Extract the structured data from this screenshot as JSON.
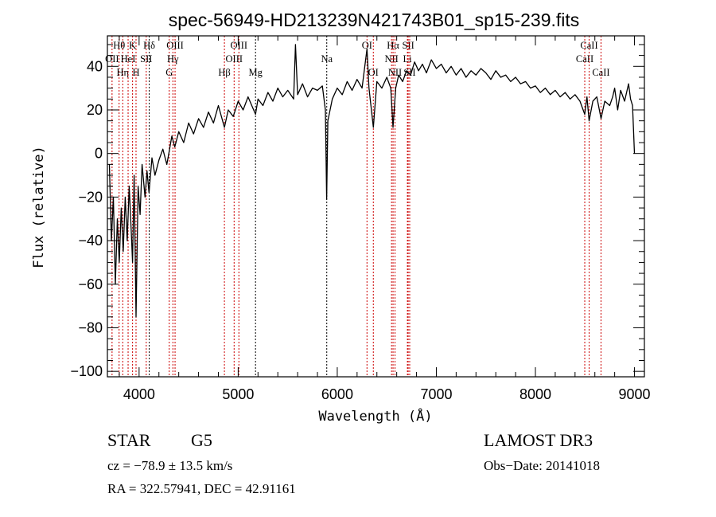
{
  "chart_data": {
    "type": "line",
    "title": "spec-56949-HD213239N421743B01_sp15-239.fits",
    "xlabel": "Wavelength (Å)",
    "ylabel": "Flux (relative)",
    "xlim": [
      3680,
      9100
    ],
    "ylim": [
      -102.5,
      54
    ],
    "xticks": [
      4000,
      5000,
      6000,
      7000,
      8000,
      9000
    ],
    "yticks": [
      -100,
      -80,
      -60,
      -40,
      -20,
      0,
      20,
      40
    ],
    "x_minor_step": 200,
    "y_minor_step": 5,
    "grid": false,
    "series": [
      {
        "name": "spectrum",
        "color": "#000000",
        "x": [
          3700,
          3720,
          3740,
          3760,
          3780,
          3800,
          3820,
          3840,
          3860,
          3880,
          3900,
          3920,
          3934,
          3950,
          3969,
          3990,
          4010,
          4030,
          4060,
          4080,
          4100,
          4130,
          4160,
          4200,
          4240,
          4280,
          4300,
          4330,
          4360,
          4400,
          4450,
          4500,
          4550,
          4600,
          4650,
          4700,
          4750,
          4800,
          4861,
          4900,
          4950,
          5000,
          5050,
          5100,
          5175,
          5200,
          5250,
          5300,
          5350,
          5400,
          5450,
          5500,
          5560,
          5578,
          5600,
          5650,
          5700,
          5750,
          5800,
          5850,
          5880,
          5893,
          5905,
          5950,
          6000,
          6050,
          6100,
          6150,
          6200,
          6250,
          6300,
          6320,
          6364,
          6400,
          6450,
          6500,
          6540,
          6563,
          6590,
          6620,
          6660,
          6700,
          6740,
          6780,
          6820,
          6860,
          6900,
          6950,
          7000,
          7050,
          7100,
          7150,
          7200,
          7250,
          7300,
          7350,
          7400,
          7450,
          7500,
          7550,
          7600,
          7650,
          7700,
          7750,
          7800,
          7850,
          7900,
          7950,
          8000,
          8050,
          8100,
          8150,
          8200,
          8250,
          8300,
          8350,
          8400,
          8450,
          8498,
          8520,
          8542,
          8580,
          8620,
          8662,
          8700,
          8750,
          8780,
          8800,
          8830,
          8860,
          8900,
          8940,
          8960,
          8980,
          9000
        ],
        "y": [
          -5,
          -40,
          -20,
          -60,
          -30,
          -50,
          -25,
          -45,
          -20,
          -40,
          -15,
          -35,
          -50,
          -10,
          -75,
          -15,
          -28,
          -5,
          -20,
          -8,
          -18,
          -2,
          -10,
          -3,
          2,
          -5,
          0,
          8,
          3,
          10,
          5,
          14,
          9,
          16,
          12,
          19,
          14,
          22,
          12,
          20,
          17,
          24,
          20,
          26,
          18,
          25,
          22,
          28,
          24,
          30,
          26,
          29,
          25,
          50,
          27,
          32,
          26,
          30,
          29,
          31,
          20,
          -21,
          15,
          25,
          30,
          27,
          33,
          29,
          34,
          30,
          48,
          30,
          12,
          33,
          30,
          35,
          30,
          12,
          30,
          36,
          33,
          38,
          36,
          42,
          38,
          41,
          37,
          43,
          39,
          41,
          37,
          40,
          36,
          39,
          35,
          38,
          36,
          39,
          37,
          34,
          38,
          35,
          36,
          33,
          35,
          32,
          33,
          30,
          31,
          28,
          30,
          27,
          29,
          26,
          28,
          25,
          27,
          24,
          18,
          26,
          15,
          24,
          26,
          16,
          24,
          22,
          26,
          30,
          20,
          29,
          24,
          32,
          25,
          22,
          0
        ]
      }
    ],
    "lines": [
      {
        "label": "OII",
        "wave": 3727,
        "tier": 2,
        "color": "#cc0000"
      },
      {
        "label": "Hθ",
        "wave": 3798,
        "tier": 1,
        "color": "#cc0000"
      },
      {
        "label": "Hη",
        "wave": 3835,
        "tier": 3,
        "color": "#cc0000"
      },
      {
        "label": "HeI",
        "wave": 3889,
        "tier": 2,
        "color": "#cc0000"
      },
      {
        "label": "K",
        "wave": 3934,
        "tier": 1,
        "color": "#cc0000"
      },
      {
        "label": "H",
        "wave": 3969,
        "tier": 3,
        "color": "#cc0000"
      },
      {
        "label": "SII",
        "wave": 4072,
        "tier": 2,
        "color": "#cc0000"
      },
      {
        "label": "Hδ",
        "wave": 4102,
        "tier": 1,
        "color": "#000000"
      },
      {
        "label": "G",
        "wave": 4304,
        "tier": 3,
        "color": "#cc0000"
      },
      {
        "label": "Hγ",
        "wave": 4341,
        "tier": 2,
        "color": "#cc0000"
      },
      {
        "label": "OIII",
        "wave": 4363,
        "tier": 1,
        "color": "#cc0000"
      },
      {
        "label": "Hβ",
        "wave": 4861,
        "tier": 3,
        "color": "#cc0000"
      },
      {
        "label": "OIII",
        "wave": 4959,
        "tier": 2,
        "color": "#cc0000"
      },
      {
        "label": "OIII",
        "wave": 5007,
        "tier": 1,
        "color": "#cc0000"
      },
      {
        "label": "Mg",
        "wave": 5175,
        "tier": 3,
        "color": "#000000"
      },
      {
        "label": "Na",
        "wave": 5894,
        "tier": 2,
        "color": "#000000"
      },
      {
        "label": "OI",
        "wave": 6300,
        "tier": 1,
        "color": "#cc0000"
      },
      {
        "label": "OI",
        "wave": 6364,
        "tier": 3,
        "color": "#cc0000"
      },
      {
        "label": "NII",
        "wave": 6548,
        "tier": 2,
        "color": "#cc0000"
      },
      {
        "label": "Hα",
        "wave": 6563,
        "tier": 1,
        "color": "#cc0000"
      },
      {
        "label": "NII",
        "wave": 6583,
        "tier": 3,
        "color": "#cc0000"
      },
      {
        "label": "Li",
        "wave": 6708,
        "tier": 2,
        "color": "#cc0000"
      },
      {
        "label": "SII",
        "wave": 6716,
        "tier": 1,
        "color": "#cc0000"
      },
      {
        "label": "SII",
        "wave": 6731,
        "tier": 3,
        "color": "#cc0000"
      },
      {
        "label": "CaII",
        "wave": 8498,
        "tier": 2,
        "color": "#cc0000"
      },
      {
        "label": "CaII",
        "wave": 8542,
        "tier": 1,
        "color": "#cc0000"
      },
      {
        "label": "CaII",
        "wave": 8662,
        "tier": 3,
        "color": "#cc0000"
      }
    ]
  },
  "info": {
    "object_class": "STAR",
    "subclass": "G5",
    "survey": "LAMOST DR3",
    "cz": "cz = −78.9 ± 13.5 km/s",
    "obs_date": "Obs−Date: 20141018",
    "coords": "RA = 322.57941, DEC =  42.91161"
  }
}
